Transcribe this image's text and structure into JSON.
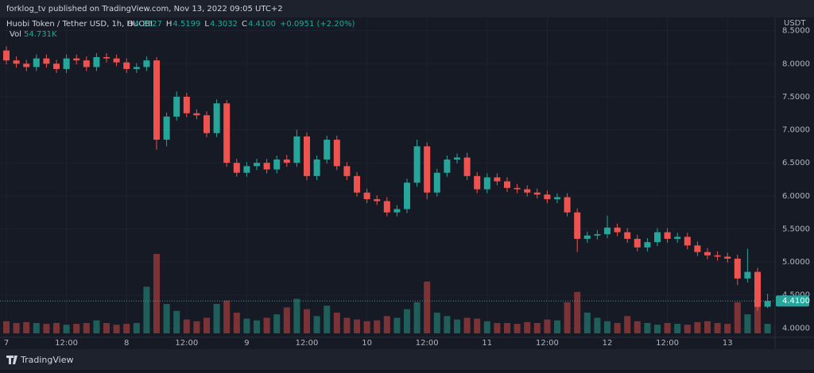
{
  "header": {
    "publisher": "forklog_tv published on TradingView.com, Nov 13, 2022 09:05 UTC+2"
  },
  "chart_data": {
    "type": "candlestick",
    "symbol": "Huobi Token / Tether USD, 1h, HUOBI",
    "legend": {
      "ohlc": [
        {
          "key": "O",
          "value": "4.3227"
        },
        {
          "key": "H",
          "value": "4.5199"
        },
        {
          "key": "L",
          "value": "4.3032"
        },
        {
          "key": "C",
          "value": "4.4100"
        }
      ],
      "change": "+0.0951 (+2.20%)",
      "volume_key": "Vol",
      "volume_value": "54.731K"
    },
    "currency": "USDT",
    "last_price_label": "4.4100",
    "categories": [
      "7",
      null,
      null,
      null,
      null,
      null,
      "12:00",
      null,
      null,
      null,
      null,
      null,
      "8",
      null,
      null,
      null,
      null,
      null,
      "12:00",
      null,
      null,
      null,
      null,
      null,
      "9",
      null,
      null,
      null,
      null,
      null,
      "12:00",
      null,
      null,
      null,
      null,
      null,
      "10",
      null,
      null,
      null,
      null,
      null,
      "12:00",
      null,
      null,
      null,
      null,
      null,
      "11",
      null,
      null,
      null,
      null,
      null,
      "12:00",
      null,
      null,
      null,
      null,
      null,
      "12",
      null,
      null,
      null,
      null,
      null,
      "12:00",
      null,
      null,
      null,
      null,
      null,
      "13",
      null,
      null,
      null,
      null
    ],
    "open": [
      8.2,
      8.05,
      8.0,
      7.95,
      8.08,
      8.0,
      7.92,
      8.08,
      8.05,
      7.95,
      8.1,
      8.08,
      8.02,
      7.92,
      7.95,
      8.05,
      6.85,
      7.2,
      7.5,
      7.25,
      7.22,
      6.95,
      7.4,
      6.5,
      6.35,
      6.45,
      6.5,
      6.4,
      6.55,
      6.5,
      6.9,
      6.3,
      6.55,
      6.85,
      6.45,
      6.3,
      6.05,
      5.95,
      5.92,
      5.75,
      5.8,
      6.2,
      6.75,
      6.05,
      6.35,
      6.55,
      6.58,
      6.3,
      6.1,
      6.28,
      6.22,
      6.12,
      6.1,
      6.05,
      6.02,
      5.95,
      5.98,
      5.75,
      5.35,
      5.4,
      5.42,
      5.52,
      5.45,
      5.35,
      5.22,
      5.3,
      5.45,
      5.35,
      5.38,
      5.25,
      5.15,
      5.1,
      5.08,
      5.05,
      4.75,
      4.85,
      4.3227
    ],
    "high": [
      8.26,
      8.11,
      8.06,
      8.14,
      8.14,
      8.06,
      8.14,
      8.14,
      8.11,
      8.16,
      8.16,
      8.14,
      8.08,
      8.01,
      8.11,
      8.1,
      7.26,
      7.58,
      7.56,
      7.31,
      7.28,
      7.46,
      7.45,
      6.56,
      6.51,
      6.56,
      6.56,
      6.61,
      6.62,
      7.0,
      6.96,
      6.61,
      6.91,
      6.91,
      6.51,
      6.36,
      6.11,
      6.01,
      5.98,
      5.86,
      6.26,
      6.85,
      6.81,
      6.41,
      6.61,
      6.64,
      6.65,
      6.36,
      6.34,
      6.34,
      6.28,
      6.18,
      6.16,
      6.11,
      6.08,
      6.04,
      6.04,
      5.81,
      5.46,
      5.48,
      5.7,
      5.58,
      5.51,
      5.41,
      5.36,
      5.51,
      5.51,
      5.44,
      5.44,
      5.31,
      5.21,
      5.16,
      5.14,
      5.11,
      5.2,
      4.91,
      4.5199
    ],
    "low": [
      7.99,
      7.94,
      7.89,
      7.89,
      7.94,
      7.86,
      7.86,
      7.99,
      7.89,
      7.89,
      8.02,
      7.96,
      7.86,
      7.86,
      7.89,
      6.7,
      6.75,
      7.14,
      7.19,
      7.16,
      6.89,
      6.89,
      6.44,
      6.29,
      6.29,
      6.39,
      6.34,
      6.34,
      6.44,
      6.44,
      6.24,
      6.24,
      6.49,
      6.39,
      6.24,
      5.99,
      5.89,
      5.86,
      5.69,
      5.69,
      5.74,
      6.14,
      5.95,
      5.99,
      6.29,
      6.49,
      6.24,
      6.04,
      6.04,
      6.16,
      6.06,
      6.04,
      5.99,
      5.96,
      5.89,
      5.89,
      5.69,
      5.15,
      5.29,
      5.34,
      5.36,
      5.39,
      5.29,
      5.16,
      5.16,
      5.24,
      5.29,
      5.29,
      5.19,
      5.09,
      5.04,
      5.02,
      4.99,
      4.65,
      4.69,
      4.26,
      4.3032
    ],
    "close": [
      8.05,
      8.0,
      7.95,
      8.08,
      8.0,
      7.92,
      8.08,
      8.05,
      7.95,
      8.1,
      8.08,
      8.02,
      7.92,
      7.95,
      8.05,
      6.85,
      7.2,
      7.5,
      7.25,
      7.22,
      6.95,
      7.4,
      6.5,
      6.35,
      6.45,
      6.5,
      6.4,
      6.55,
      6.5,
      6.9,
      6.3,
      6.55,
      6.85,
      6.45,
      6.3,
      6.05,
      5.95,
      5.92,
      5.75,
      5.8,
      6.2,
      6.75,
      6.05,
      6.35,
      6.55,
      6.58,
      6.3,
      6.1,
      6.28,
      6.22,
      6.12,
      6.1,
      6.05,
      6.02,
      5.95,
      5.98,
      5.75,
      5.35,
      5.4,
      5.42,
      5.52,
      5.45,
      5.35,
      5.22,
      5.3,
      5.45,
      5.35,
      5.38,
      5.25,
      5.15,
      5.1,
      5.08,
      5.05,
      4.75,
      4.85,
      4.32,
      4.41
    ],
    "volume": [
      70000,
      60000,
      65000,
      60000,
      55000,
      60000,
      50000,
      55000,
      60000,
      75000,
      60000,
      50000,
      55000,
      60000,
      270000,
      460000,
      170000,
      130000,
      80000,
      70000,
      90000,
      170000,
      190000,
      120000,
      85000,
      75000,
      90000,
      110000,
      150000,
      200000,
      140000,
      100000,
      160000,
      120000,
      90000,
      80000,
      70000,
      75000,
      100000,
      90000,
      140000,
      180000,
      300000,
      120000,
      100000,
      80000,
      90000,
      85000,
      70000,
      60000,
      60000,
      55000,
      65000,
      60000,
      80000,
      75000,
      180000,
      240000,
      120000,
      90000,
      70000,
      60000,
      100000,
      70000,
      60000,
      50000,
      60000,
      55000,
      50000,
      65000,
      70000,
      60000,
      55000,
      180000,
      110000,
      260000,
      54731
    ],
    "colors": {
      "up": "#26a69a",
      "down": "#ef5350",
      "up_volume": "#1f5f5b",
      "down_volume": "#7c3336"
    },
    "ylim": [
      3.86,
      8.7
    ],
    "yticks": [
      {
        "value": 4,
        "label": "4.0000"
      },
      {
        "value": 4.5,
        "label": "4.5000"
      },
      {
        "value": 5,
        "label": "5.0000"
      },
      {
        "value": 5.5,
        "label": "5.5000"
      },
      {
        "value": 6,
        "label": "6.0000"
      },
      {
        "value": 6.5,
        "label": "6.5000"
      },
      {
        "value": 7,
        "label": "7.0000"
      },
      {
        "value": 7.5,
        "label": "7.5000"
      },
      {
        "value": 8,
        "label": "8.0000"
      },
      {
        "value": 8.5,
        "label": "8.5000"
      }
    ],
    "grid": true
  },
  "footer": {
    "brand": "TradingView"
  }
}
